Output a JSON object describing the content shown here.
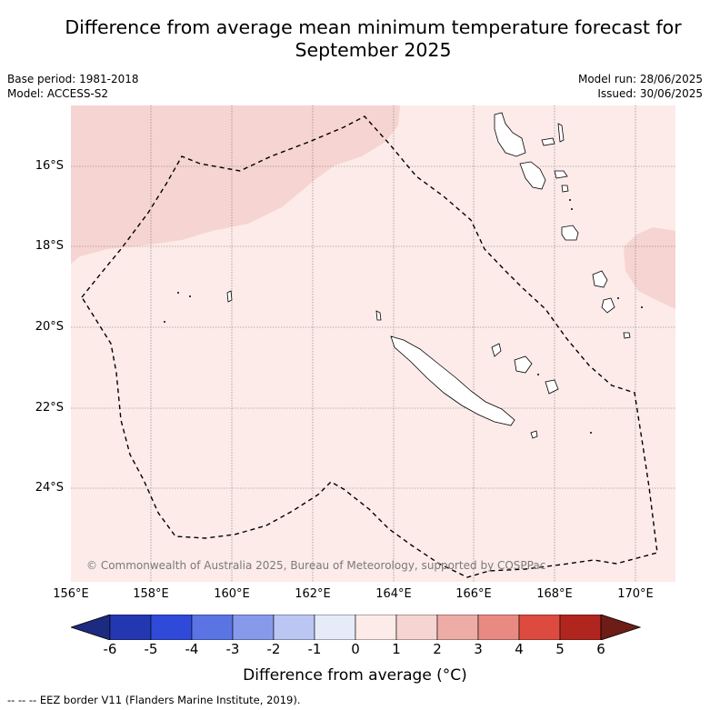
{
  "title_line1": "Difference from average mean minimum temperature forecast for",
  "title_line2": "September 2025",
  "meta_left": {
    "base_period": "Base period: 1981-2018",
    "model": "Model: ACCESS-S2"
  },
  "meta_right": {
    "model_run": "Model run: 28/06/2025",
    "issued": "Issued: 30/06/2025"
  },
  "copyright": "© Commonwealth of Australia 2025, Bureau of Meteorology, supported by COSPPac",
  "lat_labels": [
    "16°S",
    "18°S",
    "20°S",
    "22°S",
    "24°S"
  ],
  "lon_labels": [
    "156°E",
    "158°E",
    "160°E",
    "162°E",
    "164°E",
    "166°E",
    "168°E",
    "170°E"
  ],
  "colorbar": {
    "title": "Difference from average (°C)",
    "ticks": [
      "-6",
      "-5",
      "-4",
      "-3",
      "-2",
      "-1",
      "0",
      "1",
      "2",
      "3",
      "4",
      "5",
      "6"
    ],
    "colors": [
      "#1c2a80",
      "#2338b0",
      "#2f4ad9",
      "#5a74e4",
      "#8799ea",
      "#bcc6f2",
      "#e6ebfa",
      "#fcebe9",
      "#f6d4d1",
      "#eeaca6",
      "#e88a82",
      "#dd4b40",
      "#b0261e",
      "#6e1c16"
    ]
  },
  "eez_note": "--  --  -- EEZ border V11 (Flanders Marine Institute, 2019).",
  "colors": {
    "background": "#fcebe9",
    "warm_zone": "#f6d4d1"
  }
}
